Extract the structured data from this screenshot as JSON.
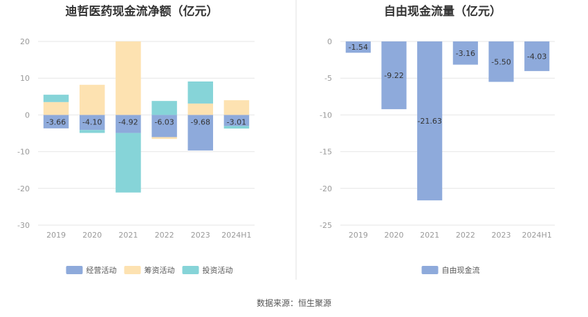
{
  "source_note": "数据来源：恒生聚源",
  "colors": {
    "operating": "#8eaadb",
    "financing": "#fde2b1",
    "investing": "#86d4d8",
    "fcf": "#8eaadb",
    "grid": "#e6e6e6",
    "divider": "#e0e0e0"
  },
  "chart_data": [
    {
      "type": "bar",
      "stacked": true,
      "title": "迪哲医药现金流净额（亿元）",
      "categories": [
        "2019",
        "2020",
        "2021",
        "2022",
        "2023",
        "2024H1"
      ],
      "ylim": [
        -30,
        20
      ],
      "yticks": [
        20,
        10,
        0,
        -10,
        -20,
        -30
      ],
      "grid": true,
      "legend_position": "bottom",
      "series": [
        {
          "name": "经营活动",
          "color_key": "operating",
          "values": [
            -3.66,
            -4.1,
            -4.92,
            -6.03,
            -9.68,
            -3.01
          ],
          "labels": [
            "-3.66",
            "-4.10",
            "-4.92",
            "-6.03",
            "-9.68",
            "-3.01"
          ]
        },
        {
          "name": "筹资活动",
          "color_key": "financing",
          "values": [
            3.5,
            8.2,
            20.0,
            -0.5,
            3.1,
            4.0
          ]
        },
        {
          "name": "投资活动",
          "color_key": "investing",
          "values": [
            2.0,
            -0.8,
            -16.2,
            3.8,
            6.0,
            -0.7
          ]
        }
      ]
    },
    {
      "type": "bar",
      "title": "自由现金流量（亿元）",
      "categories": [
        "2019",
        "2020",
        "2021",
        "2022",
        "2023",
        "2024H1"
      ],
      "ylim": [
        -25,
        0
      ],
      "yticks": [
        0,
        -5,
        -10,
        -15,
        -20,
        -25
      ],
      "grid": true,
      "legend_position": "bottom",
      "series": [
        {
          "name": "自由现金流",
          "color_key": "fcf",
          "values": [
            -1.54,
            -9.22,
            -21.63,
            -3.16,
            -5.5,
            -4.03
          ],
          "labels": [
            "-1.54",
            "-9.22",
            "-21.63",
            "-3.16",
            "-5.50",
            "-4.03"
          ]
        }
      ]
    }
  ]
}
